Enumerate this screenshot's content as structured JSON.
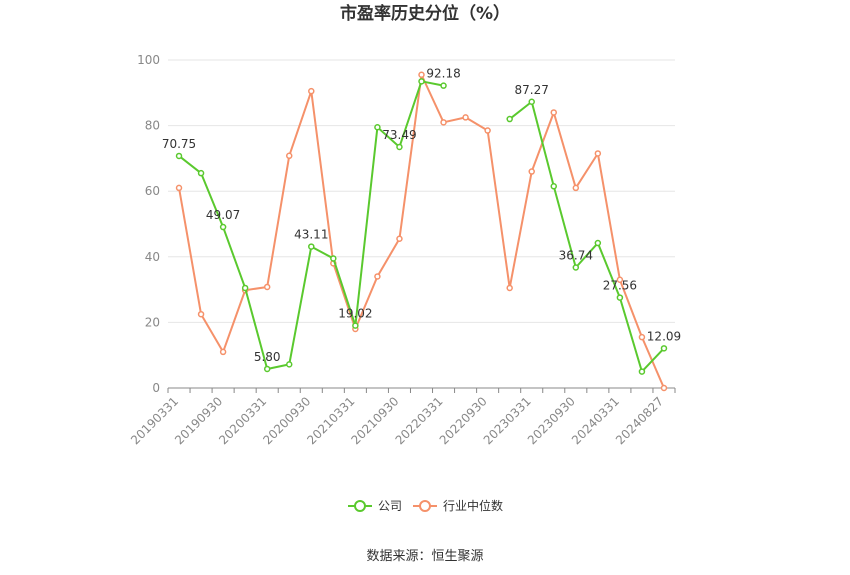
{
  "chart_data": {
    "type": "line",
    "title": "市盈率历史分位（%）",
    "ylim": [
      0,
      100
    ],
    "y_ticks": [
      "0",
      "20",
      "40",
      "60",
      "80",
      "100"
    ],
    "x_tick_labels": [
      "20190331",
      "20190930",
      "20200331",
      "20200930",
      "20210331",
      "20210930",
      "20220331",
      "20220930",
      "20230331",
      "20230930",
      "20240331",
      "20240827"
    ],
    "grid": true,
    "legend_position": "bottom",
    "x": [
      "20190331",
      "20190630",
      "20190930",
      "20191231",
      "20200331",
      "20200630",
      "20200930",
      "20201231",
      "20210331",
      "20210630",
      "20210930",
      "20211231",
      "20220331",
      "20220630",
      "20220930",
      "20221231",
      "20230331",
      "20230630",
      "20230930",
      "20231231",
      "20240331",
      "20240630",
      "20240827"
    ],
    "series": [
      {
        "name": "公司",
        "color": "#5ac92e",
        "values": [
          70.75,
          65.5,
          49.07,
          30.5,
          5.8,
          7.2,
          43.11,
          39.5,
          19.02,
          79.5,
          73.49,
          93.5,
          92.18,
          null,
          null,
          82.0,
          87.27,
          61.5,
          36.74,
          44.2,
          27.56,
          5.0,
          12.09
        ],
        "labels": [
          {
            "index": 0,
            "text": "70.75"
          },
          {
            "index": 2,
            "text": "49.07"
          },
          {
            "index": 4,
            "text": "5.80"
          },
          {
            "index": 6,
            "text": "43.11"
          },
          {
            "index": 8,
            "text": "19.02"
          },
          {
            "index": 10,
            "text": "73.49"
          },
          {
            "index": 12,
            "text": "92.18"
          },
          {
            "index": 16,
            "text": "87.27"
          },
          {
            "index": 18,
            "text": "36.74"
          },
          {
            "index": 20,
            "text": "27.56"
          },
          {
            "index": 22,
            "text": "12.09"
          }
        ]
      },
      {
        "name": "行业中位数",
        "color": "#f5916a",
        "values": [
          61.0,
          22.5,
          11.0,
          29.8,
          30.8,
          70.8,
          90.5,
          38.0,
          18.0,
          34.0,
          45.5,
          95.5,
          81.0,
          82.5,
          78.5,
          30.5,
          66.0,
          84.0,
          61.0,
          71.5,
          33.0,
          15.5,
          0.0
        ]
      }
    ]
  },
  "footer": {
    "source": "数据来源：恒生聚源"
  }
}
